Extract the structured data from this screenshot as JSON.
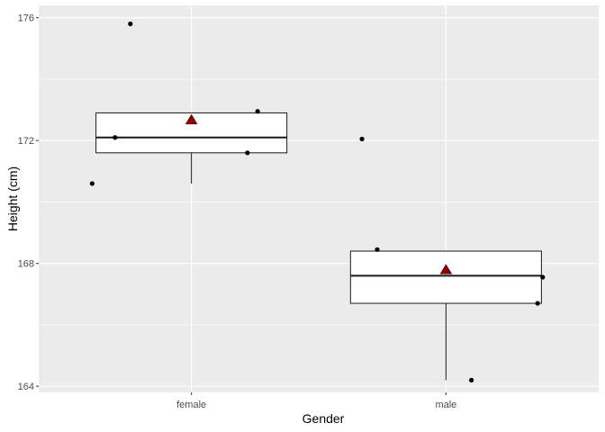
{
  "chart_data": {
    "type": "boxplot",
    "xlabel": "Gender",
    "ylabel": "Height (cm)",
    "categories": [
      "female",
      "male"
    ],
    "ylim": [
      163.8,
      176.4
    ],
    "yticks": [
      164,
      168,
      172,
      176
    ],
    "ytick_labels": [
      "164",
      "168",
      "172",
      "176"
    ],
    "grid": true,
    "background": "#ebebeb",
    "grid_color": "#ffffff",
    "box_fill": "#ffffff",
    "box_stroke": "#1a1a1a",
    "point_color": "#000000",
    "mean_color": "#8b0000",
    "boxes": [
      {
        "category": "female",
        "min": 170.6,
        "q1": 171.6,
        "median": 172.1,
        "q3": 172.9,
        "max": 172.9,
        "mean": 172.66
      },
      {
        "category": "male",
        "min": 164.2,
        "q1": 166.7,
        "median": 167.6,
        "q3": 168.4,
        "max": 168.4,
        "mean": 167.78
      }
    ],
    "points": [
      {
        "category": "female",
        "jitter": -0.39,
        "y": 170.6
      },
      {
        "category": "female",
        "jitter": -0.3,
        "y": 172.1
      },
      {
        "category": "female",
        "jitter": -0.24,
        "y": 175.8
      },
      {
        "category": "female",
        "jitter": 0.22,
        "y": 171.6
      },
      {
        "category": "female",
        "jitter": 0.26,
        "y": 172.95
      },
      {
        "category": "male",
        "jitter": -0.33,
        "y": 172.05
      },
      {
        "category": "male",
        "jitter": -0.27,
        "y": 168.45
      },
      {
        "category": "male",
        "jitter": 0.1,
        "y": 164.2
      },
      {
        "category": "male",
        "jitter": 0.36,
        "y": 166.7
      },
      {
        "category": "male",
        "jitter": 0.38,
        "y": 167.55
      }
    ]
  }
}
